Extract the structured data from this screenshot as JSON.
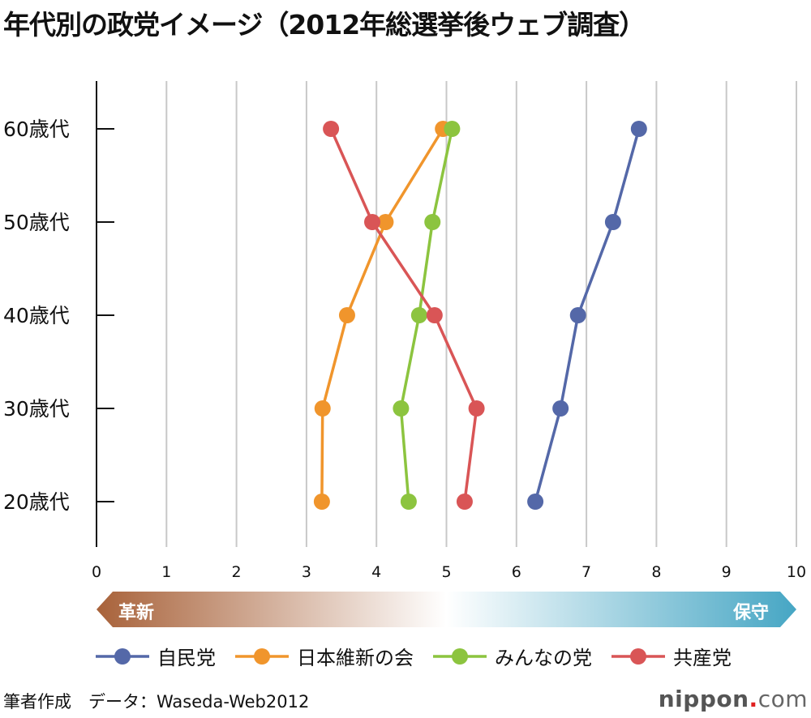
{
  "title": "年代別の政党イメージ（2012年総選挙後ウェブ調査）",
  "chart_data": {
    "type": "line",
    "title": "年代別の政党イメージ（2012年総選挙後ウェブ調査）",
    "categories": [
      "60歳代",
      "50歳代",
      "40歳代",
      "30歳代",
      "20歳代"
    ],
    "xlim": [
      0,
      10
    ],
    "xticks": [
      "0",
      "1",
      "2",
      "3",
      "4",
      "5",
      "6",
      "7",
      "8",
      "9",
      "10"
    ],
    "grid": true,
    "legend": "bottom",
    "scale_labels": {
      "left": "革新",
      "right": "保守"
    },
    "scale_colors": {
      "left": "#a8623a",
      "right": "#46a6c4"
    },
    "series": [
      {
        "name": "自民党",
        "color": "#5468a8",
        "values": [
          7.75,
          7.38,
          6.88,
          6.63,
          6.27
        ]
      },
      {
        "name": "日本維新の会",
        "color": "#f0952c",
        "values": [
          4.95,
          4.13,
          3.58,
          3.23,
          3.22
        ]
      },
      {
        "name": "みんなの党",
        "color": "#8cc43f",
        "values": [
          5.08,
          4.8,
          4.61,
          4.35,
          4.46
        ]
      },
      {
        "name": "共産党",
        "color": "#d95556",
        "values": [
          3.35,
          3.94,
          4.83,
          5.43,
          5.26
        ]
      }
    ]
  },
  "footer": {
    "credit": "筆者作成　データ：Waseda-Web2012",
    "logo_main": "nippon",
    "logo_dot": ".",
    "logo_com": "com"
  }
}
